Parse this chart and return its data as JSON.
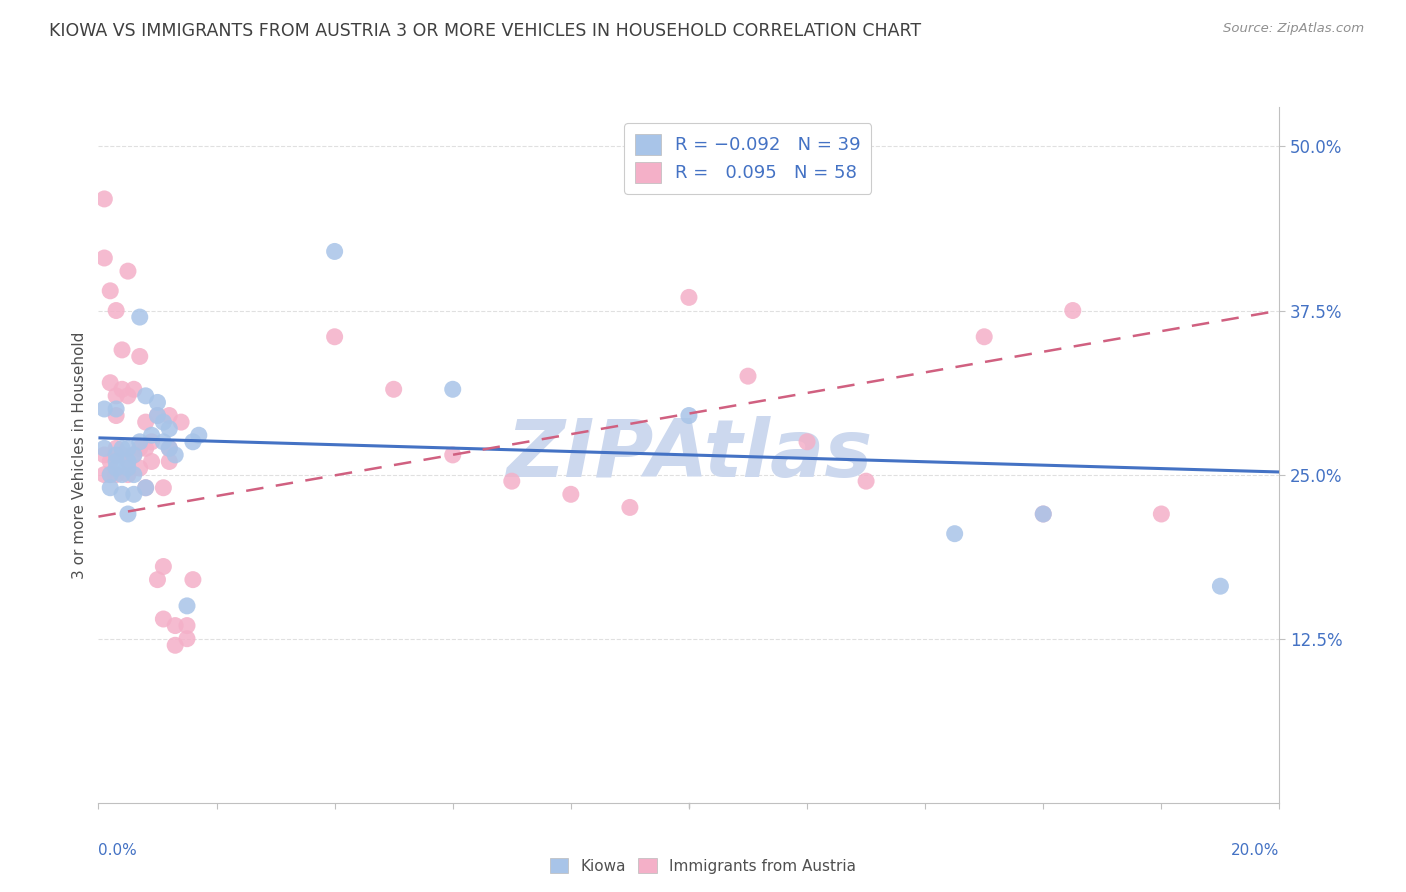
{
  "title": "KIOWA VS IMMIGRANTS FROM AUSTRIA 3 OR MORE VEHICLES IN HOUSEHOLD CORRELATION CHART",
  "source": "Source: ZipAtlas.com",
  "ylabel": "3 or more Vehicles in Household",
  "ytick_labels": [
    "12.5%",
    "25.0%",
    "37.5%",
    "50.0%"
  ],
  "ytick_values": [
    0.125,
    0.25,
    0.375,
    0.5
  ],
  "xmin": 0.0,
  "xmax": 0.2,
  "ymin": 0.0,
  "ymax": 0.53,
  "color_blue": "#a8c4e8",
  "color_pink": "#f4b0c8",
  "color_blue_line": "#4472c4",
  "color_pink_line": "#d06080",
  "color_blue_text": "#4472c4",
  "color_title": "#404040",
  "color_source": "#909090",
  "color_grid": "#e0e0e0",
  "color_axis": "#c0c0c0",
  "color_watermark": "#ccd8ee",
  "kiowa_x": [
    0.001,
    0.001,
    0.002,
    0.002,
    0.003,
    0.003,
    0.003,
    0.003,
    0.004,
    0.004,
    0.004,
    0.005,
    0.005,
    0.005,
    0.006,
    0.006,
    0.007,
    0.007,
    0.008,
    0.009,
    0.01,
    0.01,
    0.011,
    0.011,
    0.012,
    0.012,
    0.013,
    0.015,
    0.016,
    0.017,
    0.04,
    0.06,
    0.1,
    0.145,
    0.16,
    0.19,
    0.005,
    0.006,
    0.008
  ],
  "kiowa_y": [
    0.27,
    0.3,
    0.25,
    0.24,
    0.255,
    0.26,
    0.265,
    0.3,
    0.235,
    0.25,
    0.27,
    0.255,
    0.26,
    0.27,
    0.25,
    0.265,
    0.275,
    0.37,
    0.31,
    0.28,
    0.295,
    0.305,
    0.275,
    0.29,
    0.27,
    0.285,
    0.265,
    0.15,
    0.275,
    0.28,
    0.42,
    0.315,
    0.295,
    0.205,
    0.22,
    0.165,
    0.22,
    0.235,
    0.24
  ],
  "austria_x": [
    0.001,
    0.001,
    0.001,
    0.001,
    0.002,
    0.002,
    0.002,
    0.002,
    0.003,
    0.003,
    0.003,
    0.003,
    0.003,
    0.004,
    0.004,
    0.004,
    0.005,
    0.005,
    0.005,
    0.005,
    0.006,
    0.006,
    0.007,
    0.007,
    0.007,
    0.008,
    0.008,
    0.008,
    0.009,
    0.009,
    0.01,
    0.01,
    0.011,
    0.011,
    0.011,
    0.012,
    0.012,
    0.012,
    0.013,
    0.013,
    0.014,
    0.015,
    0.015,
    0.016,
    0.04,
    0.05,
    0.06,
    0.07,
    0.08,
    0.09,
    0.1,
    0.11,
    0.12,
    0.13,
    0.15,
    0.16,
    0.165,
    0.18
  ],
  "austria_y": [
    0.46,
    0.415,
    0.265,
    0.25,
    0.39,
    0.32,
    0.26,
    0.25,
    0.375,
    0.31,
    0.295,
    0.27,
    0.25,
    0.345,
    0.315,
    0.265,
    0.405,
    0.31,
    0.26,
    0.25,
    0.315,
    0.265,
    0.34,
    0.27,
    0.255,
    0.29,
    0.27,
    0.24,
    0.275,
    0.26,
    0.295,
    0.17,
    0.14,
    0.18,
    0.24,
    0.295,
    0.27,
    0.26,
    0.12,
    0.135,
    0.29,
    0.125,
    0.135,
    0.17,
    0.355,
    0.315,
    0.265,
    0.245,
    0.235,
    0.225,
    0.385,
    0.325,
    0.275,
    0.245,
    0.355,
    0.22,
    0.375,
    0.22
  ],
  "blue_line_x": [
    0.0,
    0.2
  ],
  "blue_line_y": [
    0.278,
    0.252
  ],
  "pink_line_x": [
    0.0,
    0.2
  ],
  "pink_line_y": [
    0.218,
    0.375
  ]
}
